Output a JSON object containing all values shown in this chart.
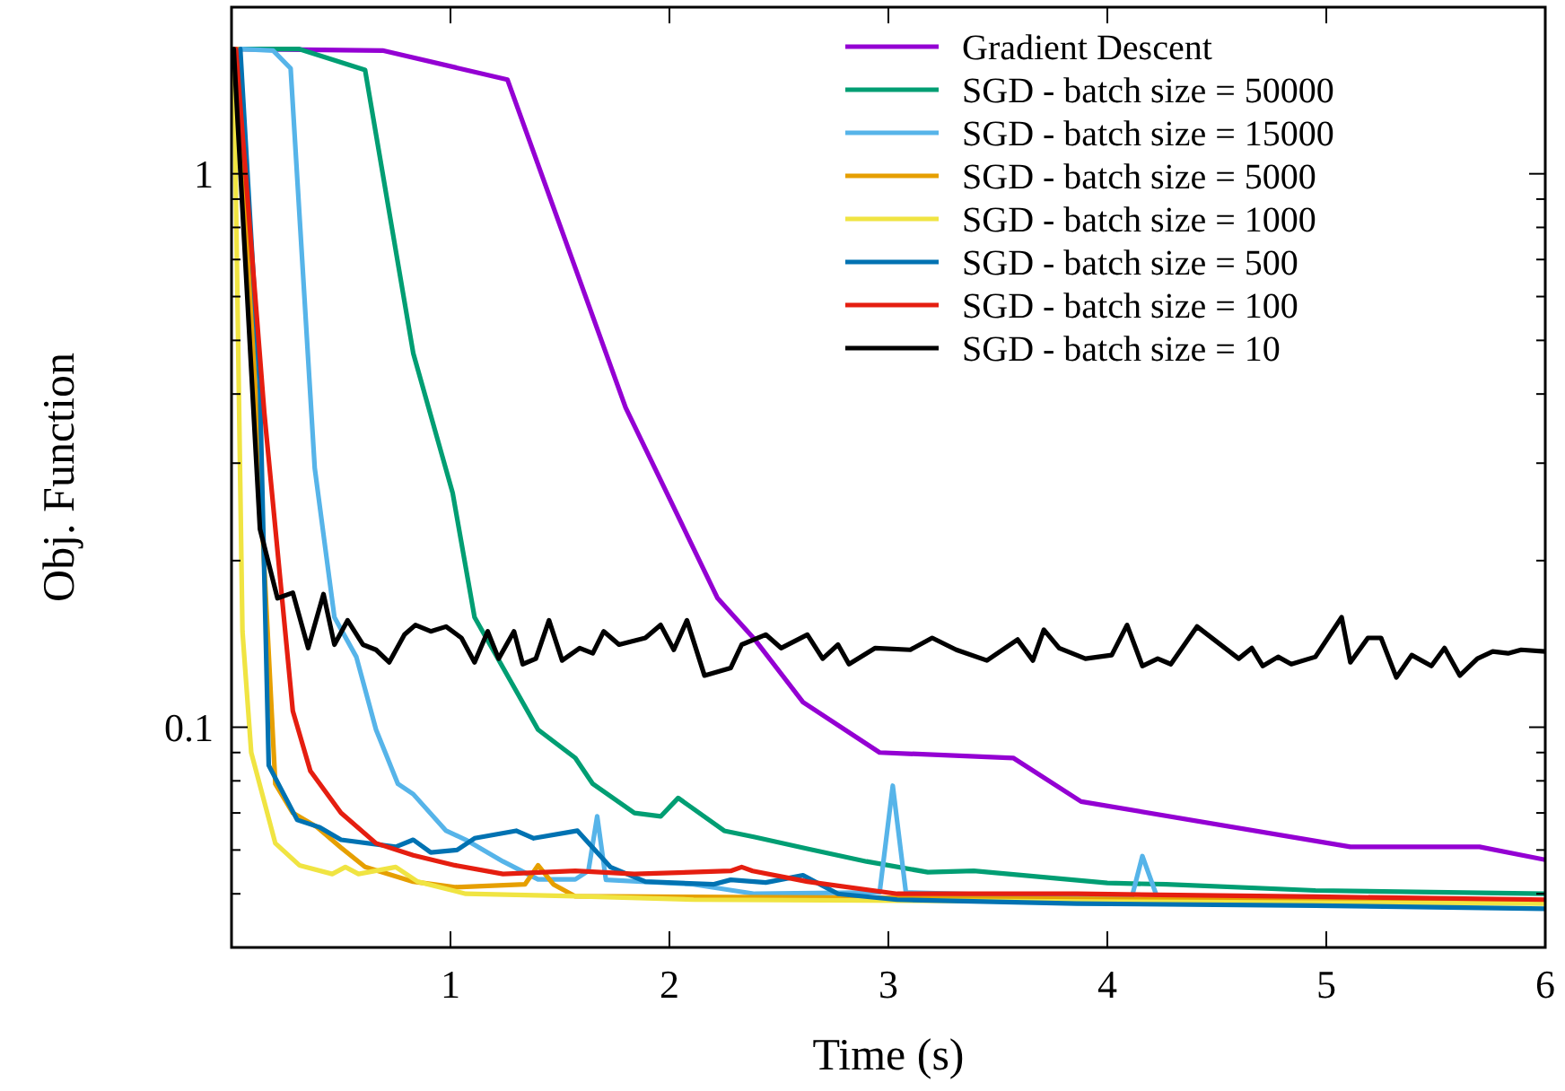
{
  "chart_data": {
    "type": "line",
    "xlabel": "Time (s)",
    "ylabel": "Obj. Function",
    "log": "y",
    "xlim": [
      0,
      6
    ],
    "ylim": [
      0.04,
      2
    ],
    "xticks": [
      1,
      2,
      3,
      4,
      5,
      6
    ],
    "yticks": [
      {
        "value": 0.05,
        "label": null
      },
      {
        "value": 0.06,
        "label": null
      },
      {
        "value": 0.07,
        "label": null
      },
      {
        "value": 0.08,
        "label": null
      },
      {
        "value": 0.09,
        "label": null
      },
      {
        "value": 0.1,
        "label": "0.1"
      },
      {
        "value": 0.2,
        "label": null
      },
      {
        "value": 0.3,
        "label": null
      },
      {
        "value": 0.4,
        "label": null
      },
      {
        "value": 0.5,
        "label": null
      },
      {
        "value": 0.6,
        "label": null
      },
      {
        "value": 0.7,
        "label": null
      },
      {
        "value": 0.8,
        "label": null
      },
      {
        "value": 0.9,
        "label": null
      },
      1
    ],
    "grid": false,
    "legend": "top right",
    "marker": "none",
    "line_style": "solid",
    "series": [
      {
        "name": "Gradient Descent",
        "color": "#9400d3",
        "x": [
          0.05,
          0.69,
          1.26,
          1.8,
          2.22,
          2.39,
          2.61,
          2.96,
          3.57,
          3.88,
          5.11,
          5.7,
          6
        ],
        "values": [
          1.68,
          1.67,
          1.48,
          0.378,
          0.171,
          0.144,
          0.111,
          0.09,
          0.088,
          0.0734,
          0.0608,
          0.0608,
          0.0576
        ]
      },
      {
        "name": "SGD - batch size = 50000",
        "color": "#009e73",
        "x": [
          0.05,
          0.31,
          0.61,
          0.83,
          1.01,
          1.11,
          1.4,
          1.57,
          1.65,
          1.84,
          1.96,
          2.04,
          2.25,
          2.39,
          2.63,
          2.9,
          3.18,
          3.39,
          4.0,
          4.27,
          4.95,
          6
        ],
        "values": [
          1.68,
          1.68,
          1.54,
          0.474,
          0.265,
          0.158,
          0.099,
          0.088,
          0.079,
          0.07,
          0.069,
          0.0745,
          0.065,
          0.0633,
          0.0603,
          0.0572,
          0.0547,
          0.055,
          0.0523,
          0.052,
          0.0507,
          0.05
        ]
      },
      {
        "name": "SGD - batch size = 15000",
        "color": "#56b4e9",
        "x": [
          0.05,
          0.19,
          0.27,
          0.38,
          0.47,
          0.57,
          0.66,
          0.76,
          0.83,
          0.98,
          1.07,
          1.24,
          1.4,
          1.57,
          1.63,
          1.67,
          1.71,
          2.11,
          2.39,
          2.96,
          3.02,
          3.08,
          4.11,
          4.16,
          4.23,
          6
        ],
        "values": [
          1.68,
          1.67,
          1.55,
          0.294,
          0.158,
          0.134,
          0.099,
          0.079,
          0.0757,
          0.065,
          0.0626,
          0.0572,
          0.0531,
          0.0531,
          0.055,
          0.069,
          0.053,
          0.052,
          0.05,
          0.0503,
          0.0784,
          0.0503,
          0.049,
          0.0585,
          0.049,
          0.0481
        ]
      },
      {
        "name": "SGD - batch size = 5000",
        "color": "#e69f00",
        "x": [
          0.03,
          0.2,
          0.28,
          0.39,
          0.5,
          0.61,
          0.83,
          1.02,
          1.34,
          1.4,
          1.47,
          1.57,
          6
        ],
        "values": [
          1.68,
          0.079,
          0.07,
          0.066,
          0.0606,
          0.0559,
          0.0526,
          0.0514,
          0.052,
          0.0563,
          0.052,
          0.0495,
          0.0485
        ]
      },
      {
        "name": "SGD - batch size = 1000",
        "color": "#f0e442",
        "x": [
          0.01,
          0.05,
          0.09,
          0.2,
          0.31,
          0.46,
          0.52,
          0.58,
          0.75,
          0.85,
          1.07,
          1.57,
          2.11,
          6
        ],
        "values": [
          1.68,
          0.149,
          0.09,
          0.0617,
          0.0563,
          0.0543,
          0.0559,
          0.0543,
          0.0559,
          0.0526,
          0.05,
          0.0495,
          0.0488,
          0.048
        ]
      },
      {
        "name": "SGD - batch size = 500",
        "color": "#0072b2",
        "x": [
          0.04,
          0.13,
          0.17,
          0.3,
          0.4,
          0.5,
          0.75,
          0.83,
          0.91,
          1.03,
          1.11,
          1.3,
          1.38,
          1.58,
          1.73,
          1.89,
          2.2,
          2.28,
          2.44,
          2.61,
          2.77,
          3.04,
          3.86,
          4.95,
          6
        ],
        "values": [
          1.68,
          0.408,
          0.0853,
          0.068,
          0.066,
          0.0626,
          0.0608,
          0.0626,
          0.0594,
          0.06,
          0.063,
          0.065,
          0.063,
          0.065,
          0.0559,
          0.0526,
          0.052,
          0.053,
          0.0524,
          0.054,
          0.05,
          0.0488,
          0.048,
          0.0476,
          0.047
        ]
      },
      {
        "name": "SGD - batch size = 100",
        "color": "#e51e10",
        "x": [
          0.02,
          0.15,
          0.28,
          0.36,
          0.5,
          0.66,
          0.83,
          1.02,
          1.24,
          1.57,
          1.84,
          2.28,
          2.33,
          2.38,
          2.63,
          3.04,
          3.86,
          4.95,
          6
        ],
        "values": [
          1.68,
          0.369,
          0.107,
          0.0834,
          0.07,
          0.0617,
          0.0587,
          0.0563,
          0.0543,
          0.055,
          0.0543,
          0.055,
          0.0559,
          0.055,
          0.0526,
          0.05,
          0.05,
          0.0494,
          0.0488
        ]
      },
      {
        "name": "SGD - batch size = 10",
        "color": "#000000",
        "x": [
          0.01,
          0.13,
          0.21,
          0.28,
          0.35,
          0.42,
          0.47,
          0.53,
          0.6,
          0.66,
          0.72,
          0.79,
          0.84,
          0.91,
          0.98,
          1.05,
          1.11,
          1.17,
          1.22,
          1.29,
          1.33,
          1.39,
          1.45,
          1.51,
          1.59,
          1.65,
          1.7,
          1.77,
          1.89,
          1.96,
          2.02,
          2.08,
          2.16,
          2.28,
          2.33,
          2.44,
          2.51,
          2.63,
          2.7,
          2.77,
          2.82,
          2.94,
          3.1,
          3.2,
          3.31,
          3.45,
          3.59,
          3.66,
          3.71,
          3.78,
          3.9,
          4.02,
          4.09,
          4.16,
          4.23,
          4.29,
          4.41,
          4.6,
          4.66,
          4.71,
          4.78,
          4.84,
          4.95,
          5.07,
          5.11,
          5.19,
          5.25,
          5.32,
          5.39,
          5.48,
          5.54,
          5.61,
          5.69,
          5.76,
          5.83,
          5.89,
          6
        ],
        "values": [
          1.68,
          0.228,
          0.171,
          0.175,
          0.139,
          0.174,
          0.141,
          0.156,
          0.141,
          0.138,
          0.131,
          0.147,
          0.153,
          0.149,
          0.152,
          0.145,
          0.131,
          0.149,
          0.133,
          0.149,
          0.13,
          0.133,
          0.156,
          0.132,
          0.139,
          0.136,
          0.149,
          0.141,
          0.145,
          0.153,
          0.138,
          0.156,
          0.124,
          0.128,
          0.141,
          0.147,
          0.139,
          0.147,
          0.133,
          0.141,
          0.13,
          0.139,
          0.138,
          0.145,
          0.138,
          0.132,
          0.144,
          0.132,
          0.15,
          0.139,
          0.133,
          0.135,
          0.153,
          0.129,
          0.133,
          0.13,
          0.152,
          0.133,
          0.139,
          0.129,
          0.134,
          0.13,
          0.134,
          0.158,
          0.131,
          0.145,
          0.145,
          0.123,
          0.135,
          0.129,
          0.139,
          0.124,
          0.133,
          0.137,
          0.136,
          0.138,
          0.137
        ]
      }
    ]
  }
}
